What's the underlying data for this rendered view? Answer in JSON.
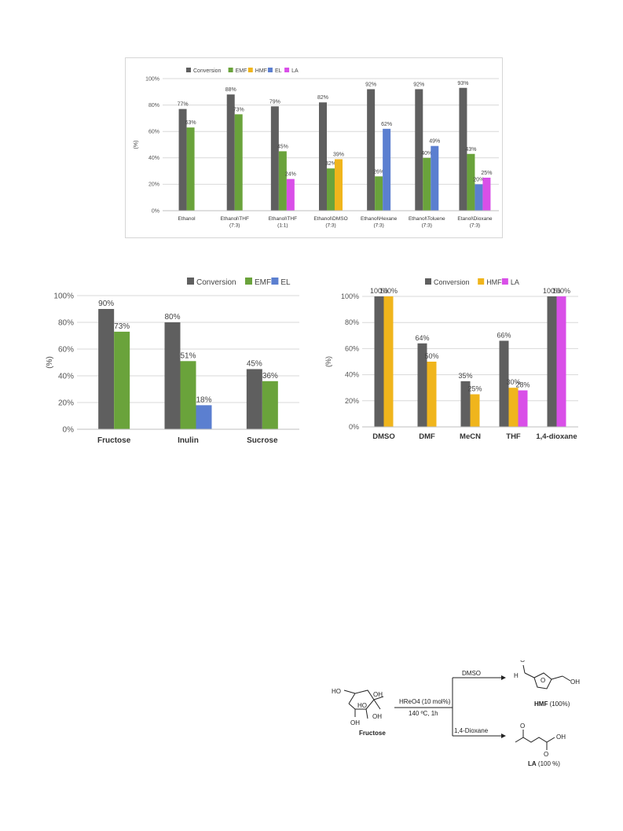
{
  "colors": {
    "Conversion": "#5f5f5f",
    "EMF": "#6aa33b",
    "HMF": "#f0b51c",
    "EL": "#5b7fd0",
    "LA": "#d94fe8"
  },
  "chart_data": [
    {
      "type": "bar",
      "categories": [
        "Ethanol",
        "Ethanol\\THF (7:3)",
        "Ethanol\\THF (1:1)",
        "Ethanol\\DMSO (7:3)",
        "Ethanol\\Hexane (7:3)",
        "Ethanol\\Toluene (7:3)",
        "Etanol\\Dioxane (7:3)"
      ],
      "series": [
        {
          "name": "Conversion",
          "values": [
            77,
            88,
            79,
            82,
            92,
            92,
            93
          ]
        },
        {
          "name": "EMF",
          "values": [
            63,
            73,
            45,
            32,
            26,
            40,
            43
          ]
        },
        {
          "name": "HMF",
          "values": [
            null,
            null,
            null,
            39,
            null,
            null,
            null
          ]
        },
        {
          "name": "EL",
          "values": [
            null,
            null,
            null,
            null,
            62,
            49,
            20
          ]
        },
        {
          "name": "LA",
          "values": [
            null,
            null,
            24,
            null,
            null,
            null,
            25
          ]
        }
      ],
      "ylabel": "(%)",
      "yticks": [
        "0%",
        "20%",
        "40%",
        "60%",
        "80%",
        "100%"
      ],
      "ylim": [
        0,
        100
      ],
      "legend": "top-center",
      "grid": true
    },
    {
      "type": "bar",
      "categories": [
        "Fructose",
        "Inulin",
        "Sucrose"
      ],
      "series": [
        {
          "name": "Conversion",
          "values": [
            90,
            80,
            45
          ]
        },
        {
          "name": "EMF",
          "values": [
            73,
            51,
            36
          ]
        },
        {
          "name": "EL",
          "values": [
            null,
            18,
            null
          ]
        }
      ],
      "ylabel": "(%)",
      "yticks": [
        "0%",
        "20%",
        "40%",
        "60%",
        "80%",
        "100%"
      ],
      "ylim": [
        0,
        100
      ],
      "legend": "top-right",
      "grid": true
    },
    {
      "type": "bar",
      "categories": [
        "DMSO",
        "DMF",
        "MeCN",
        "THF",
        "1,4-dioxane"
      ],
      "series": [
        {
          "name": "Conversion",
          "values": [
            100,
            64,
            35,
            66,
            100
          ]
        },
        {
          "name": "HMF",
          "values": [
            100,
            50,
            25,
            30,
            null
          ]
        },
        {
          "name": "LA",
          "values": [
            null,
            null,
            null,
            28,
            100
          ]
        }
      ],
      "ylabel": "(%)",
      "yticks": [
        "0%",
        "20%",
        "40%",
        "60%",
        "80%",
        "100%"
      ],
      "ylim": [
        0,
        100
      ],
      "legend": "top-center",
      "grid": true
    }
  ],
  "scheme": {
    "reactant": "Fructose",
    "oh_labels": [
      "HO",
      "OH",
      "HO",
      "OH",
      "OH"
    ],
    "conditions_top": "HReO4 (10 mol%)",
    "conditions_bottom": "140 ºC, 1h",
    "solvent_top": "DMSO",
    "solvent_bottom": "1,4-Dioxane",
    "product_top": "HMF",
    "product_top_yield": "(100%)",
    "product_bottom": "LA",
    "product_bottom_yield": "(100 %)",
    "atom_h": "H",
    "atom_oh": "OH",
    "atom_o": "O"
  }
}
